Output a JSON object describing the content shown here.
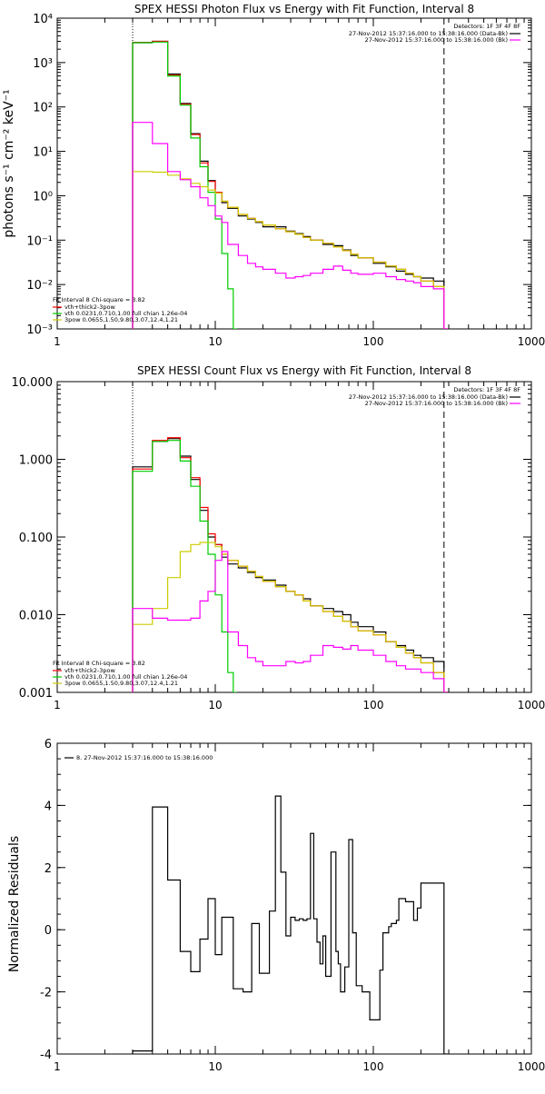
{
  "chart_data": [
    {
      "type": "line",
      "title": "SPEX HESSI Photon Flux vs Energy with Fit Function, Interval 8",
      "ylabel": "photons s⁻¹ cm⁻² keV⁻¹",
      "xlabel": "",
      "xscale": "log",
      "yscale": "log",
      "xlim": [
        1,
        1000
      ],
      "ylim": [
        0.001,
        10000
      ],
      "xticks": [
        "1",
        "10",
        "100",
        "1000"
      ],
      "yticks": [
        "10⁻³",
        "10⁻²",
        "10⁻¹",
        "10⁰",
        "10¹",
        "10²",
        "10³",
        "10⁴"
      ],
      "vlines_dotted": [
        3
      ],
      "vlines_dashed": [
        280
      ],
      "legend_topright": {
        "header": "Detectors: 1F 3F 4F 8F",
        "rows": [
          {
            "text": "27-Nov-2012 15:37:16.000 to 15:38:16.000 (Data-Bk)",
            "color": "#000000"
          },
          {
            "text": "27-Nov-2012 15:37:16.000 to 15:38:16.000 (Bk)",
            "color": "#ff00ff"
          }
        ]
      },
      "legend_bottomleft": {
        "header": "Fit Interval 8   Chi-square = 3.82",
        "rows": [
          {
            "text": "vth+thick2-3pow",
            "color": "#ff0000"
          },
          {
            "text": "vth 0.0231,0.710,1.00  full chian 1.26e-04",
            "color": "#00cc00"
          },
          {
            "text": "3pow 0.0655,1.50,9.80,3.07,12.4,1.21",
            "color": "#cccc00"
          }
        ]
      },
      "series": [
        {
          "name": "Data-Bk",
          "color": "#000000",
          "x": [
            3,
            4,
            5,
            6,
            7,
            8,
            9,
            10,
            11,
            12,
            14,
            16,
            18,
            20,
            24,
            28,
            32,
            36,
            40,
            48,
            56,
            64,
            72,
            80,
            100,
            120,
            140,
            160,
            180,
            200,
            240,
            280
          ],
          "y": [
            2800,
            3000,
            550,
            120,
            25,
            6,
            2.2,
            1.2,
            0.7,
            0.52,
            0.35,
            0.3,
            0.25,
            0.2,
            0.2,
            0.16,
            0.14,
            0.12,
            0.1,
            0.08,
            0.075,
            0.06,
            0.045,
            0.04,
            0.03,
            0.025,
            0.02,
            0.017,
            0.015,
            0.014,
            0.012,
            0.001
          ]
        },
        {
          "name": "vth+thick2-3pow",
          "color": "#ff0000",
          "x": [
            3,
            4,
            5,
            6,
            7,
            8,
            9,
            10,
            11,
            12,
            14,
            16,
            18,
            20,
            24,
            28,
            32,
            36,
            40,
            48,
            56,
            64,
            72,
            80,
            100,
            120,
            140,
            160,
            180,
            200,
            240,
            280
          ],
          "y": [
            2850,
            3000,
            520,
            115,
            24,
            5.5,
            2.1,
            1.2,
            0.75,
            0.55,
            0.38,
            0.31,
            0.26,
            0.22,
            0.18,
            0.155,
            0.135,
            0.115,
            0.1,
            0.085,
            0.07,
            0.058,
            0.048,
            0.04,
            0.032,
            0.026,
            0.022,
            0.018,
            0.015,
            0.012,
            0.009,
            0.001
          ]
        },
        {
          "name": "vth",
          "color": "#00cc00",
          "x": [
            3,
            4,
            5,
            6,
            7,
            8,
            9,
            10,
            11,
            12,
            13
          ],
          "y": [
            2800,
            2900,
            500,
            110,
            20,
            4.5,
            1.2,
            0.3,
            0.05,
            0.008,
            0.001
          ]
        },
        {
          "name": "3pow",
          "color": "#cccc00",
          "x": [
            3,
            4,
            5,
            6,
            7,
            8,
            9,
            10,
            11,
            12,
            14,
            16,
            18,
            20,
            24,
            28,
            32,
            36,
            40,
            48,
            56,
            64,
            72,
            80,
            100,
            120,
            140,
            160,
            180,
            200,
            240,
            280
          ],
          "y": [
            3.5,
            3.4,
            2.9,
            2.4,
            1.9,
            1.6,
            1.35,
            1.15,
            0.75,
            0.55,
            0.38,
            0.31,
            0.26,
            0.22,
            0.18,
            0.155,
            0.135,
            0.115,
            0.1,
            0.085,
            0.07,
            0.058,
            0.048,
            0.04,
            0.032,
            0.026,
            0.022,
            0.018,
            0.015,
            0.012,
            0.009,
            0.001
          ]
        },
        {
          "name": "Bk",
          "color": "#ff00ff",
          "x": [
            3,
            4,
            5,
            6,
            7,
            8,
            9,
            10,
            11,
            12,
            14,
            16,
            18,
            20,
            24,
            28,
            32,
            36,
            40,
            48,
            56,
            64,
            72,
            80,
            100,
            120,
            140,
            160,
            180,
            200,
            240,
            280
          ],
          "y": [
            45,
            15,
            3.5,
            2.3,
            1.6,
            0.9,
            0.6,
            0.35,
            0.25,
            0.08,
            0.045,
            0.03,
            0.025,
            0.022,
            0.018,
            0.014,
            0.015,
            0.016,
            0.018,
            0.022,
            0.026,
            0.021,
            0.018,
            0.017,
            0.018,
            0.015,
            0.013,
            0.012,
            0.011,
            0.009,
            0.008,
            0.001
          ]
        }
      ]
    },
    {
      "type": "line",
      "title": "SPEX HESSI Count Flux vs Energy with Fit Function, Interval 8",
      "ylabel": "",
      "xlabel": "",
      "xscale": "log",
      "yscale": "log",
      "xlim": [
        1,
        1000
      ],
      "ylim": [
        0.001,
        10
      ],
      "xticks": [
        "1",
        "10",
        "100",
        "1000"
      ],
      "yticks": [
        "0.001",
        "0.010",
        "0.100",
        "1.000",
        "10.000"
      ],
      "vlines_dotted": [
        3
      ],
      "vlines_dashed": [
        280
      ],
      "legend_topright": {
        "header": "Detectors: 1F 3F 4F 8F",
        "rows": [
          {
            "text": "27-Nov-2012 15:37:16.000 to 15:38:16.000 (Data-Bk)",
            "color": "#000000"
          },
          {
            "text": "27-Nov-2012 15:37:16.000 to 15:38:16.000 (Bk)",
            "color": "#ff00ff"
          }
        ]
      },
      "legend_bottomleft": {
        "header": "Fit Interval 8   Chi-square = 3.82",
        "rows": [
          {
            "text": "vth+thick2-3pow",
            "color": "#ff0000"
          },
          {
            "text": "vth 0.0231,0.710,1.00  full chian 1.26e-04",
            "color": "#00cc00"
          },
          {
            "text": "3pow 0.0655,1.50,9.80,3.07,12.4,1.21",
            "color": "#cccc00"
          }
        ]
      },
      "series": [
        {
          "name": "Data-Bk",
          "color": "#000000",
          "x": [
            3,
            4,
            5,
            6,
            7,
            8,
            9,
            10,
            11,
            12,
            14,
            16,
            18,
            20,
            24,
            28,
            32,
            36,
            40,
            48,
            56,
            64,
            72,
            80,
            100,
            120,
            140,
            160,
            180,
            200,
            240,
            280
          ],
          "y": [
            0.8,
            1.7,
            1.85,
            1.1,
            0.55,
            0.22,
            0.1,
            0.08,
            0.055,
            0.045,
            0.04,
            0.035,
            0.03,
            0.028,
            0.024,
            0.02,
            0.018,
            0.016,
            0.013,
            0.012,
            0.011,
            0.01,
            0.008,
            0.007,
            0.006,
            0.0045,
            0.004,
            0.0035,
            0.003,
            0.0028,
            0.0025,
            0.001
          ]
        },
        {
          "name": "vth+thick2-3pow",
          "color": "#ff0000",
          "x": [
            3,
            4,
            5,
            6,
            7,
            8,
            9,
            10,
            11,
            12,
            14,
            16,
            18,
            20,
            24,
            28,
            32,
            36,
            40,
            48,
            56,
            64,
            72,
            80,
            100,
            120,
            140,
            160,
            180,
            200,
            240,
            280
          ],
          "y": [
            0.75,
            1.75,
            1.9,
            1.05,
            0.58,
            0.24,
            0.11,
            0.08,
            0.06,
            0.05,
            0.042,
            0.036,
            0.031,
            0.027,
            0.023,
            0.02,
            0.018,
            0.015,
            0.013,
            0.011,
            0.0095,
            0.0082,
            0.007,
            0.0062,
            0.0055,
            0.0045,
            0.0038,
            0.0032,
            0.0028,
            0.0024,
            0.0018,
            0.001
          ]
        },
        {
          "name": "vth",
          "color": "#00cc00",
          "x": [
            3,
            4,
            5,
            6,
            7,
            8,
            9,
            10,
            11,
            12,
            13
          ],
          "y": [
            0.7,
            1.7,
            1.75,
            0.95,
            0.45,
            0.16,
            0.06,
            0.018,
            0.006,
            0.0018,
            0.001
          ]
        },
        {
          "name": "3pow",
          "color": "#cccc00",
          "x": [
            3,
            4,
            5,
            6,
            7,
            8,
            9,
            10,
            11,
            12,
            14,
            16,
            18,
            20,
            24,
            28,
            32,
            36,
            40,
            48,
            56,
            64,
            72,
            80,
            100,
            120,
            140,
            160,
            180,
            200,
            240,
            280
          ],
          "y": [
            0.0075,
            0.012,
            0.03,
            0.065,
            0.08,
            0.085,
            0.085,
            0.075,
            0.06,
            0.05,
            0.042,
            0.036,
            0.031,
            0.027,
            0.023,
            0.02,
            0.018,
            0.015,
            0.013,
            0.011,
            0.0095,
            0.0082,
            0.007,
            0.0062,
            0.0055,
            0.0045,
            0.0038,
            0.0032,
            0.0028,
            0.0024,
            0.0018,
            0.001
          ]
        },
        {
          "name": "Bk",
          "color": "#ff00ff",
          "x": [
            3,
            4,
            5,
            6,
            7,
            8,
            9,
            10,
            11,
            12,
            14,
            16,
            18,
            20,
            24,
            28,
            32,
            36,
            40,
            48,
            56,
            64,
            72,
            80,
            100,
            120,
            140,
            160,
            180,
            200,
            240,
            280
          ],
          "y": [
            0.012,
            0.009,
            0.0085,
            0.0085,
            0.009,
            0.015,
            0.02,
            0.05,
            0.065,
            0.006,
            0.004,
            0.0028,
            0.0025,
            0.0022,
            0.0022,
            0.0025,
            0.0024,
            0.0025,
            0.003,
            0.004,
            0.0038,
            0.0036,
            0.004,
            0.0035,
            0.003,
            0.0025,
            0.0022,
            0.002,
            0.002,
            0.0018,
            0.0015,
            0.001
          ]
        }
      ]
    },
    {
      "type": "line",
      "title": "",
      "ylabel": "Normalized Residuals",
      "xlabel": "",
      "xscale": "log",
      "yscale": "linear",
      "xlim": [
        1,
        1000
      ],
      "ylim": [
        -4,
        6
      ],
      "xticks": [
        "1",
        "10",
        "100",
        "1000"
      ],
      "yticks": [
        "-4",
        "-2",
        "0",
        "2",
        "4",
        "6"
      ],
      "legend_topleft": {
        "rows": [
          {
            "text": "8. 27-Nov-2012 15:37:16.000 to 15:38:16.000",
            "color": "#000000"
          }
        ]
      },
      "series": [
        {
          "name": "8. 27-Nov-2012 15:37:16.000 to 15:38:16.000",
          "color": "#000000",
          "x": [
            3,
            3.5,
            4,
            4.5,
            5,
            5.5,
            6,
            6.5,
            7,
            7.5,
            8,
            8.5,
            9,
            9.5,
            10,
            10.5,
            11,
            12,
            13,
            14,
            15,
            16,
            17,
            18,
            19,
            20,
            22,
            24,
            26,
            28,
            30,
            32,
            34,
            36,
            38,
            40,
            42,
            44,
            46,
            48,
            50,
            52,
            54,
            56,
            58,
            60,
            62,
            64,
            66,
            68,
            70,
            72,
            74,
            76,
            78,
            80,
            85,
            90,
            95,
            100,
            105,
            110,
            115,
            120,
            125,
            130,
            135,
            140,
            145,
            150,
            160,
            170,
            180,
            190,
            200,
            220,
            240,
            260,
            280
          ],
          "y": [
            -3.9,
            -3.9,
            3.95,
            3.95,
            1.6,
            1.6,
            -0.7,
            -0.7,
            -1.35,
            -1.35,
            -0.3,
            -0.3,
            1.0,
            1.0,
            -0.8,
            -0.8,
            0.4,
            0.4,
            -1.9,
            -1.9,
            -2.0,
            -2.0,
            0.2,
            0.2,
            -1.4,
            -1.4,
            0.6,
            4.3,
            1.85,
            -0.2,
            0.4,
            0.3,
            0.35,
            0.3,
            0.35,
            3.1,
            0.35,
            -0.4,
            -1.1,
            -0.2,
            -1.5,
            -1.5,
            2.5,
            2.5,
            -0.7,
            -1.1,
            -2.0,
            -2.0,
            -1.2,
            -1.2,
            2.9,
            2.9,
            -0.1,
            -0.1,
            -1.8,
            -1.8,
            -2.0,
            -2.0,
            -2.9,
            -2.9,
            -2.9,
            -1.3,
            -0.1,
            -0.1,
            0.1,
            0.2,
            0.2,
            0.3,
            1.0,
            1.0,
            0.9,
            0.9,
            0.3,
            0.7,
            1.5,
            1.5,
            1.5,
            1.5,
            -4.0
          ]
        }
      ]
    }
  ]
}
